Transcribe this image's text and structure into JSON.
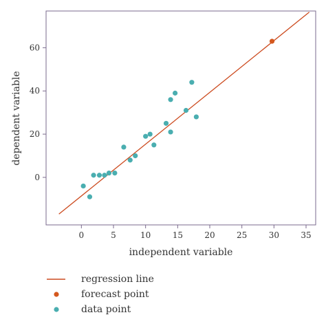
{
  "chart_data": {
    "type": "scatter",
    "xlabel": "independent variable",
    "ylabel": "dependent variable",
    "xlim": [
      -5.5,
      36.5
    ],
    "ylim": [
      -22,
      77
    ],
    "xticks": [
      0,
      5,
      10,
      15,
      20,
      25,
      30,
      35
    ],
    "yticks": [
      0,
      20,
      40,
      60
    ],
    "grid": false,
    "legend_placement": "bottom-left",
    "series": [
      {
        "name": "regression line",
        "kind": "line",
        "color": "#cc4a1e",
        "points": [
          [
            -3.5,
            -17
          ],
          [
            35.5,
            76.5
          ]
        ]
      },
      {
        "name": "forecast point",
        "kind": "point",
        "color": "#d4581e",
        "points": [
          [
            29.7,
            63
          ]
        ]
      },
      {
        "name": "data point",
        "kind": "point",
        "color": "#4aaeb0",
        "points": [
          [
            0.3,
            -4
          ],
          [
            1.3,
            -9
          ],
          [
            1.9,
            1
          ],
          [
            2.8,
            1
          ],
          [
            3.6,
            1
          ],
          [
            4.3,
            2
          ],
          [
            5.2,
            2
          ],
          [
            6.6,
            14
          ],
          [
            7.6,
            8
          ],
          [
            8.4,
            10
          ],
          [
            10.0,
            19
          ],
          [
            10.7,
            20
          ],
          [
            11.3,
            15
          ],
          [
            13.2,
            25
          ],
          [
            13.9,
            21
          ],
          [
            13.9,
            36
          ],
          [
            14.6,
            39
          ],
          [
            16.3,
            31
          ],
          [
            17.2,
            44
          ],
          [
            17.9,
            28
          ]
        ]
      }
    ]
  }
}
